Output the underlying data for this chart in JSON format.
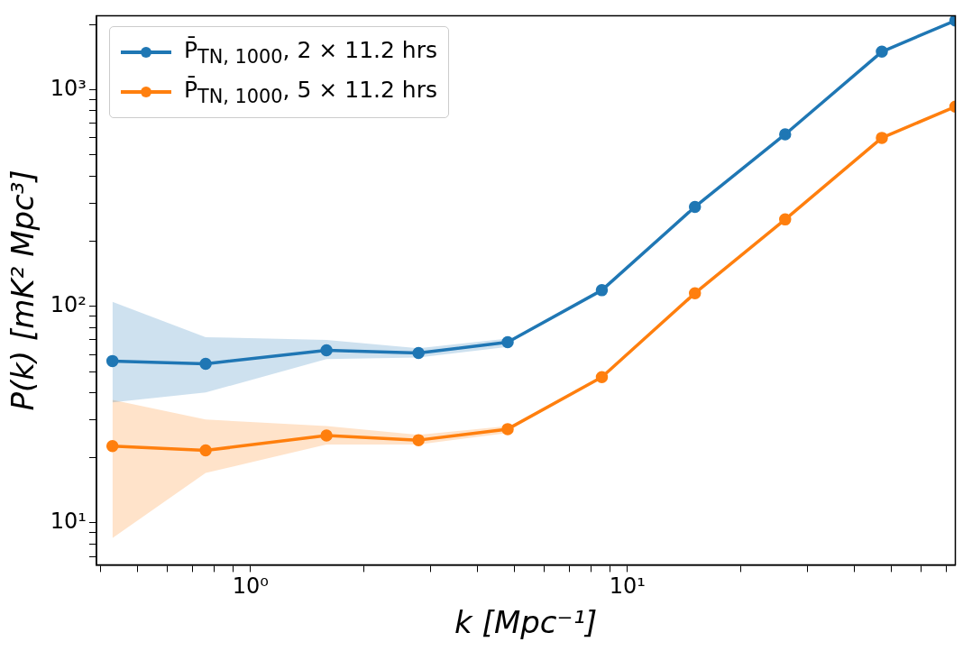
{
  "chart_data": {
    "type": "line",
    "xlabel": "k [Mpc⁻¹]",
    "ylabel": "P(k) [mK² Mpc³]",
    "log": "xy",
    "grid": false,
    "legend": "top left",
    "marker": "circle",
    "line_style": "solid",
    "x": [
      0.43,
      0.76,
      1.59,
      2.79,
      4.81,
      8.55,
      15.1,
      26.2,
      47.3,
      74.1
    ],
    "xlim": [
      0.39,
      74.1
    ],
    "ylim": [
      6.4,
      2200
    ],
    "xticks": [
      {
        "value": 0.4,
        "label": null
      },
      {
        "value": 0.5,
        "label": null
      },
      {
        "value": 0.6,
        "label": null
      },
      {
        "value": 0.7,
        "label": null
      },
      {
        "value": 0.8,
        "label": null
      },
      {
        "value": 0.9,
        "label": null
      },
      {
        "value": 1,
        "label": "10⁰"
      },
      {
        "value": 2,
        "label": null
      },
      {
        "value": 3,
        "label": null
      },
      {
        "value": 4,
        "label": null
      },
      {
        "value": 5,
        "label": null
      },
      {
        "value": 6,
        "label": null
      },
      {
        "value": 7,
        "label": null
      },
      {
        "value": 8,
        "label": null
      },
      {
        "value": 9,
        "label": null
      },
      {
        "value": 10,
        "label": "10¹"
      },
      {
        "value": 20,
        "label": null
      },
      {
        "value": 30,
        "label": null
      },
      {
        "value": 40,
        "label": null
      },
      {
        "value": 50,
        "label": null
      },
      {
        "value": 60,
        "label": null
      },
      {
        "value": 70,
        "label": null
      }
    ],
    "yticks": [
      {
        "value": 7,
        "label": null
      },
      {
        "value": 8,
        "label": null
      },
      {
        "value": 9,
        "label": null
      },
      {
        "value": 10,
        "label": "10¹"
      },
      {
        "value": 20,
        "label": null
      },
      {
        "value": 30,
        "label": null
      },
      {
        "value": 40,
        "label": null
      },
      {
        "value": 50,
        "label": null
      },
      {
        "value": 60,
        "label": null
      },
      {
        "value": 70,
        "label": null
      },
      {
        "value": 80,
        "label": null
      },
      {
        "value": 90,
        "label": null
      },
      {
        "value": 100,
        "label": "10²"
      },
      {
        "value": 200,
        "label": null
      },
      {
        "value": 300,
        "label": null
      },
      {
        "value": 400,
        "label": null
      },
      {
        "value": 500,
        "label": null
      },
      {
        "value": 600,
        "label": null
      },
      {
        "value": 700,
        "label": null
      },
      {
        "value": 800,
        "label": null
      },
      {
        "value": 900,
        "label": null
      },
      {
        "value": 1000,
        "label": "10³"
      },
      {
        "value": 2000,
        "label": null
      }
    ],
    "series": [
      {
        "name": "P̄$_{TN, 1000}$, 2 × 11.2 hrs",
        "color": "#1f77b4",
        "values": [
          55.9,
          54.3,
          62.7,
          60.9,
          68.3,
          118.7,
          288,
          623,
          1500,
          2090
        ],
        "lower": [
          36,
          40,
          57,
          58,
          65,
          null,
          null,
          null,
          null,
          null
        ],
        "upper": [
          105,
          72,
          70,
          64,
          71,
          null,
          null,
          null,
          null,
          null
        ]
      },
      {
        "name": "P̄$_{TN, 1000}$, 5 × 11.2 hrs",
        "color": "#ff7f0e",
        "values": [
          22.6,
          21.6,
          25.3,
          24.1,
          27.1,
          47.1,
          115,
          252,
          600,
          836
        ],
        "lower": [
          8.5,
          17,
          23,
          23,
          26,
          null,
          null,
          null,
          null,
          null
        ],
        "upper": [
          37,
          30,
          28,
          25.5,
          28,
          null,
          null,
          null,
          null,
          null
        ]
      }
    ]
  }
}
